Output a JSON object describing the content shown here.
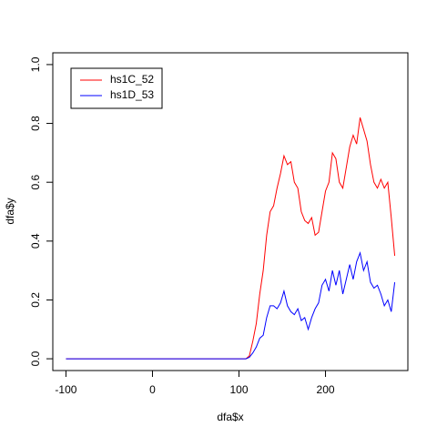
{
  "chart_data": {
    "type": "line",
    "x_label": "dfa$x",
    "y_label": "dfa$y",
    "x": [
      -100,
      104,
      108,
      112,
      116,
      120,
      124,
      128,
      132,
      136,
      140,
      144,
      148,
      152,
      156,
      160,
      164,
      168,
      172,
      176,
      180,
      184,
      188,
      192,
      196,
      200,
      204,
      208,
      212,
      216,
      220,
      224,
      228,
      232,
      236,
      240,
      244,
      248,
      252,
      256,
      260,
      264,
      268,
      272,
      276,
      280
    ],
    "series": [
      {
        "name": "hs1C_52",
        "color": "#ff0000",
        "values": [
          0,
          0,
          0,
          0.01,
          0.06,
          0.12,
          0.22,
          0.3,
          0.42,
          0.5,
          0.52,
          0.58,
          0.63,
          0.69,
          0.66,
          0.67,
          0.6,
          0.58,
          0.5,
          0.47,
          0.46,
          0.48,
          0.42,
          0.43,
          0.5,
          0.57,
          0.6,
          0.7,
          0.68,
          0.6,
          0.58,
          0.65,
          0.72,
          0.76,
          0.73,
          0.82,
          0.78,
          0.74,
          0.66,
          0.6,
          0.58,
          0.61,
          0.58,
          0.6,
          0.48,
          0.35
        ]
      },
      {
        "name": "hs1D_53",
        "color": "#0000ff",
        "values": [
          0,
          0,
          0,
          0.005,
          0.02,
          0.04,
          0.07,
          0.08,
          0.14,
          0.18,
          0.18,
          0.17,
          0.19,
          0.23,
          0.18,
          0.16,
          0.15,
          0.17,
          0.13,
          0.14,
          0.1,
          0.14,
          0.17,
          0.19,
          0.25,
          0.27,
          0.23,
          0.3,
          0.25,
          0.3,
          0.22,
          0.27,
          0.32,
          0.27,
          0.33,
          0.36,
          0.3,
          0.33,
          0.26,
          0.24,
          0.25,
          0.22,
          0.18,
          0.2,
          0.16,
          0.26
        ]
      }
    ],
    "xlim": [
      -115.2,
      295.2
    ],
    "xticks": [
      -100,
      0,
      100,
      200
    ],
    "ylim": [
      -0.04,
      1.04
    ],
    "yticks": [
      {
        "value": 0,
        "label": "0.0"
      },
      0.2,
      0.4,
      0.6,
      0.8,
      {
        "value": 1,
        "label": "1.0"
      }
    ],
    "legend": "top-left"
  }
}
